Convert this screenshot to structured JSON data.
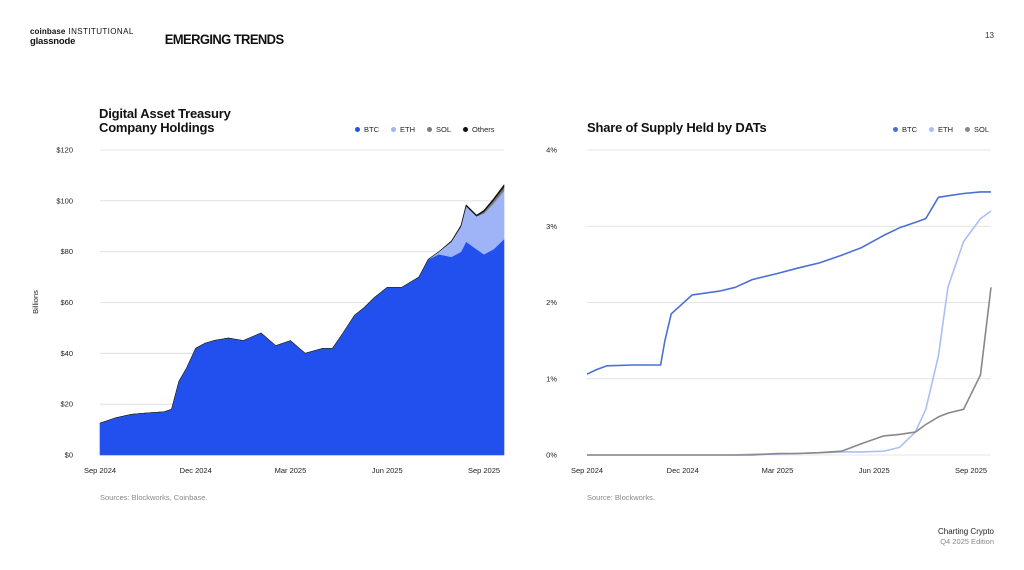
{
  "header": {
    "brand_1": "coinbase",
    "brand_1_suffix": "INSTITUTIONAL",
    "brand_2": "glassnode",
    "section": "EMERGING TRENDS",
    "page_number": "13"
  },
  "footer": {
    "line1": "Charting Crypto",
    "line2": "Q4 2025 Edition"
  },
  "colors": {
    "btc": "#2250ee",
    "eth": "#9fb4f6",
    "sol": "#7d7d7d",
    "others": "#111111",
    "grid": "#dcdcdc",
    "line_btc": "#4a6fd6",
    "line_eth": "#a9bff5",
    "line_sol": "#888888"
  },
  "chart_data": [
    {
      "type": "area",
      "title": [
        "Digital Asset Treasury",
        "Company Holdings"
      ],
      "ylabel": "Billions",
      "y_tick_labels": [
        "$0",
        "$20",
        "$40",
        "$60",
        "$80",
        "$100",
        "$120"
      ],
      "x_tick_labels": [
        "Sep 2024",
        "Dec 2024",
        "Mar 2025",
        "Jun 2025",
        "Sep 2025"
      ],
      "ylim": [
        0,
        120
      ],
      "stacked": true,
      "legend_position": "top-right",
      "grid": true,
      "source": "Sources: Blockworks, Coinbase.",
      "x": [
        "2024-09-01",
        "2024-09-15",
        "2024-10-01",
        "2024-10-15",
        "2024-11-01",
        "2024-11-08",
        "2024-11-15",
        "2024-11-22",
        "2024-12-01",
        "2024-12-10",
        "2024-12-18",
        "2025-01-01",
        "2025-01-15",
        "2025-02-01",
        "2025-02-15",
        "2025-03-01",
        "2025-03-15",
        "2025-04-01",
        "2025-04-10",
        "2025-04-20",
        "2025-05-01",
        "2025-05-10",
        "2025-05-20",
        "2025-06-01",
        "2025-06-15",
        "2025-07-01",
        "2025-07-10",
        "2025-07-20",
        "2025-08-01",
        "2025-08-10",
        "2025-08-15",
        "2025-08-25",
        "2025-09-01",
        "2025-09-10",
        "2025-09-20"
      ],
      "series": [
        {
          "name": "BTC",
          "values": [
            12.5,
            14.5,
            16,
            16.5,
            17,
            18,
            29,
            34,
            42,
            44,
            45,
            46,
            45,
            48,
            43,
            45,
            40,
            42,
            42,
            48,
            55,
            58,
            62,
            66,
            66,
            70,
            77,
            79,
            78,
            80,
            84,
            81,
            79,
            81,
            85
          ]
        },
        {
          "name": "ETH",
          "values": [
            0,
            0,
            0,
            0,
            0,
            0,
            0,
            0,
            0,
            0,
            0,
            0,
            0,
            0,
            0,
            0,
            0,
            0,
            0,
            0,
            0,
            0,
            0,
            0,
            0,
            0,
            0,
            1,
            6,
            10,
            14,
            13,
            16,
            18,
            19
          ]
        },
        {
          "name": "SOL",
          "values": [
            0,
            0,
            0,
            0,
            0,
            0,
            0,
            0,
            0,
            0,
            0,
            0,
            0,
            0,
            0,
            0,
            0,
            0,
            0,
            0,
            0,
            0,
            0,
            0,
            0,
            0,
            0,
            0,
            0,
            0,
            0,
            0,
            0.8,
            1.2,
            1.5
          ]
        },
        {
          "name": "Others",
          "values": [
            0,
            0,
            0,
            0,
            0,
            0,
            0,
            0,
            0,
            0,
            0,
            0,
            0,
            0,
            0,
            0,
            0,
            0,
            0,
            0,
            0,
            0,
            0,
            0,
            0,
            0,
            0,
            0,
            0.2,
            0.3,
            0.4,
            0.4,
            0.5,
            0.6,
            0.8
          ]
        }
      ]
    },
    {
      "type": "line",
      "title": [
        "Share of Supply Held by DATs"
      ],
      "y_tick_labels": [
        "0%",
        "1%",
        "2%",
        "3%",
        "4%"
      ],
      "x_tick_labels": [
        "Sep 2024",
        "Dec 2024",
        "Mar 2025",
        "Jun 2025",
        "Sep 2025"
      ],
      "ylim": [
        0,
        4
      ],
      "legend_position": "top-right",
      "grid": true,
      "source": "Source: Blockworks.",
      "x": [
        "2024-09-01",
        "2024-09-10",
        "2024-09-20",
        "2024-10-15",
        "2024-11-10",
        "2024-11-14",
        "2024-11-20",
        "2024-11-28",
        "2024-12-10",
        "2025-01-05",
        "2025-01-20",
        "2025-02-05",
        "2025-03-01",
        "2025-03-20",
        "2025-04-10",
        "2025-05-01",
        "2025-05-20",
        "2025-06-10",
        "2025-06-25",
        "2025-07-10",
        "2025-07-20",
        "2025-08-01",
        "2025-08-10",
        "2025-08-25",
        "2025-09-10",
        "2025-09-20"
      ],
      "series": [
        {
          "name": "BTC",
          "values": [
            1.06,
            1.12,
            1.17,
            1.18,
            1.18,
            1.5,
            1.85,
            1.95,
            2.1,
            2.15,
            2.2,
            2.3,
            2.38,
            2.45,
            2.52,
            2.62,
            2.72,
            2.88,
            2.98,
            3.05,
            3.1,
            3.38,
            3.4,
            3.43,
            3.45,
            3.45
          ]
        },
        {
          "name": "ETH",
          "values": [
            0,
            0,
            0,
            0,
            0,
            0,
            0,
            0,
            0,
            0,
            0,
            0.01,
            0.01,
            0.02,
            0.03,
            0.04,
            0.04,
            0.05,
            0.1,
            0.3,
            0.6,
            1.3,
            2.2,
            2.8,
            3.1,
            3.2
          ]
        },
        {
          "name": "SOL",
          "values": [
            0,
            0,
            0,
            0,
            0,
            0,
            0,
            0,
            0,
            0,
            0,
            0,
            0.02,
            0.02,
            0.03,
            0.05,
            0.15,
            0.25,
            0.27,
            0.3,
            0.4,
            0.5,
            0.55,
            0.6,
            1.05,
            2.2
          ]
        }
      ]
    }
  ]
}
